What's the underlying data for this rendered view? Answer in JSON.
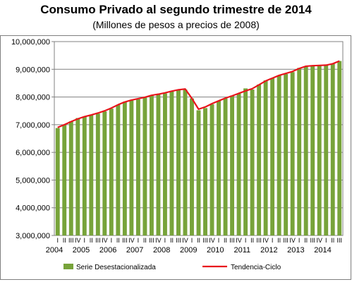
{
  "chart_data": {
    "type": "bar",
    "title": "Consumo Privado al segundo trimestre de 2014",
    "subtitle": "(Millones de pesos a precios de 2008)",
    "ylim": [
      3000000,
      10000000
    ],
    "yticks": [
      3000000,
      4000000,
      5000000,
      6000000,
      7000000,
      8000000,
      9000000,
      10000000
    ],
    "ytick_labels": [
      "3,000,000",
      "4,000,000",
      "5,000,000",
      "6,000,000",
      "7,000,000",
      "8,000,000",
      "9,000,000",
      "10,000,000"
    ],
    "grid": true,
    "legend_position": "bottom",
    "quarter_labels": [
      "I",
      "II",
      "III",
      "IV"
    ],
    "years": [
      "2004",
      "2005",
      "2006",
      "2007",
      "2008",
      "2009",
      "2010",
      "2011",
      "2012",
      "2013",
      "2014"
    ],
    "series": [
      {
        "name": "Serie Desestacionalizada",
        "type": "bar",
        "color": "#77a33a",
        "values": [
          6880000,
          6990000,
          7120000,
          7240000,
          7290000,
          7350000,
          7400000,
          7480000,
          7580000,
          7720000,
          7830000,
          7880000,
          7920000,
          7990000,
          8060000,
          8100000,
          8130000,
          8220000,
          8250000,
          8270000,
          7950000,
          7520000,
          7600000,
          7740000,
          7860000,
          7950000,
          8050000,
          8120000,
          8310000,
          8270000,
          8450000,
          8600000,
          8680000,
          8780000,
          8830000,
          8900000,
          9050000,
          9100000,
          9120000,
          9150000,
          9150000,
          9200000,
          9300000
        ]
      },
      {
        "name": "Tendencia-Ciclo",
        "type": "line",
        "color": "#e8141c",
        "values": [
          6900000,
          7000000,
          7110000,
          7210000,
          7290000,
          7350000,
          7420000,
          7500000,
          7600000,
          7720000,
          7820000,
          7890000,
          7940000,
          7990000,
          8060000,
          8100000,
          8150000,
          8210000,
          8260000,
          8290000,
          7950000,
          7560000,
          7640000,
          7760000,
          7860000,
          7960000,
          8040000,
          8130000,
          8220000,
          8300000,
          8440000,
          8580000,
          8680000,
          8780000,
          8850000,
          8920000,
          9030000,
          9110000,
          9130000,
          9140000,
          9150000,
          9200000,
          9300000
        ]
      }
    ]
  }
}
